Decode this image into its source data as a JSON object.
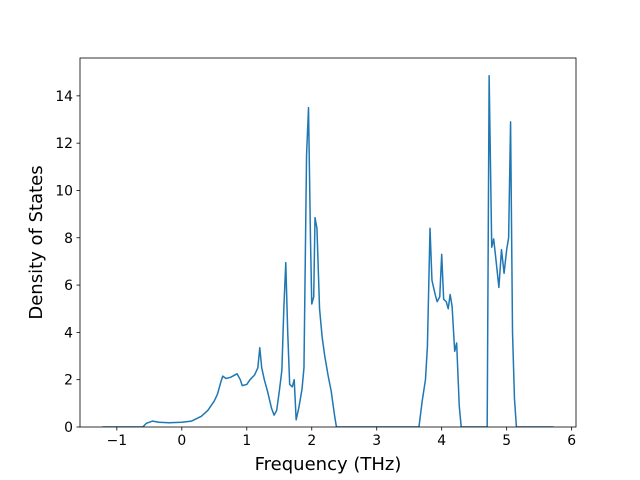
{
  "chart_data": {
    "type": "line",
    "xlabel": "Frequency (THz)",
    "ylabel": "Density of States",
    "color": "#1f77b4",
    "x": [
      -1.22,
      -0.6,
      -0.55,
      -0.45,
      -0.35,
      -0.2,
      0,
      0.15,
      0.3,
      0.4,
      0.5,
      0.55,
      0.6,
      0.63,
      0.68,
      0.75,
      0.85,
      0.9,
      0.93,
      1.0,
      1.05,
      1.12,
      1.17,
      1.2,
      1.23,
      1.27,
      1.32,
      1.38,
      1.42,
      1.46,
      1.5,
      1.54,
      1.57,
      1.6,
      1.63,
      1.66,
      1.7,
      1.73,
      1.76,
      1.8,
      1.85,
      1.88,
      1.92,
      1.95,
      1.98,
      2.0,
      2.03,
      2.05,
      2.08,
      2.12,
      2.16,
      2.2,
      2.25,
      2.3,
      2.35,
      2.38,
      3.65,
      3.7,
      3.75,
      3.78,
      3.82,
      3.85,
      3.9,
      3.93,
      3.97,
      4.0,
      4.03,
      4.07,
      4.1,
      4.13,
      4.16,
      4.2,
      4.23,
      4.27,
      4.3,
      4.7,
      4.73,
      4.77,
      4.8,
      4.83,
      4.88,
      4.92,
      4.96,
      5.0,
      5.03,
      5.06,
      5.09,
      5.12,
      5.15,
      5.72
    ],
    "values": [
      0,
      0,
      0.15,
      0.25,
      0.2,
      0.18,
      0.2,
      0.25,
      0.45,
      0.7,
      1.1,
      1.4,
      1.9,
      2.15,
      2.05,
      2.1,
      2.25,
      2.0,
      1.75,
      1.8,
      2.0,
      2.2,
      2.5,
      3.35,
      2.5,
      2.0,
      1.5,
      0.8,
      0.5,
      0.7,
      1.5,
      2.4,
      5.0,
      6.95,
      4.0,
      1.8,
      1.7,
      2.0,
      0.3,
      0.8,
      1.6,
      2.5,
      11.5,
      13.5,
      8,
      5.2,
      5.5,
      8.85,
      8.4,
      5.0,
      3.8,
      3.0,
      2.2,
      1.5,
      0.5,
      0,
      0,
      1.1,
      2.0,
      3.4,
      8.4,
      6.2,
      5.6,
      5.3,
      5.5,
      7.3,
      5.4,
      5.3,
      5.0,
      5.6,
      5.1,
      3.2,
      3.55,
      0.9,
      0,
      0,
      14.85,
      7.6,
      7.95,
      7.2,
      5.9,
      7.5,
      6.5,
      7.5,
      8.0,
      12.9,
      4.0,
      1.2,
      0,
      0
    ],
    "xlim": [
      -1.567,
      6.067
    ],
    "ylim": [
      0,
      15.6
    ],
    "xticks": [
      {
        "value": -1,
        "label": "−1"
      },
      0,
      1,
      2,
      3,
      4,
      5,
      6
    ],
    "yticks": [
      0,
      2,
      4,
      6,
      8,
      10,
      12,
      14
    ]
  }
}
